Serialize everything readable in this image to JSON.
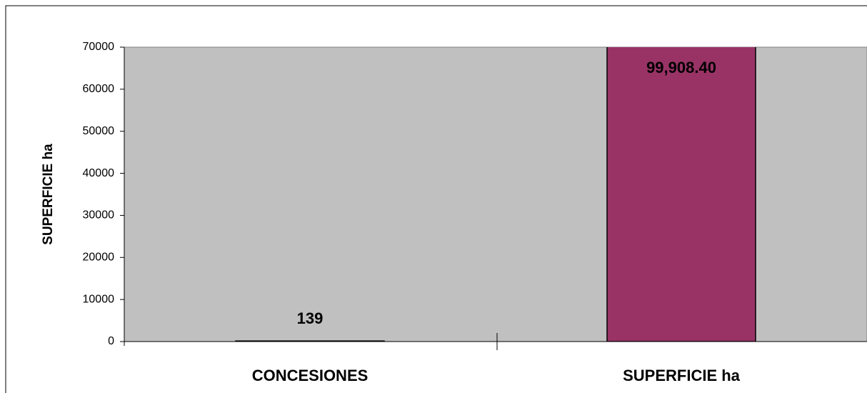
{
  "chart_data": {
    "type": "bar",
    "y_label": "SUPERFICIE ha",
    "categories": [
      "CONCESIONES",
      "SUPERFICIE ha"
    ],
    "values": [
      139,
      99908.4
    ],
    "value_labels": [
      "139",
      "99,908.40"
    ],
    "color": "#993366",
    "ylim": [
      0,
      70000
    ],
    "yticks": [
      0,
      10000,
      20000,
      30000,
      40000,
      50000,
      60000,
      70000
    ]
  }
}
